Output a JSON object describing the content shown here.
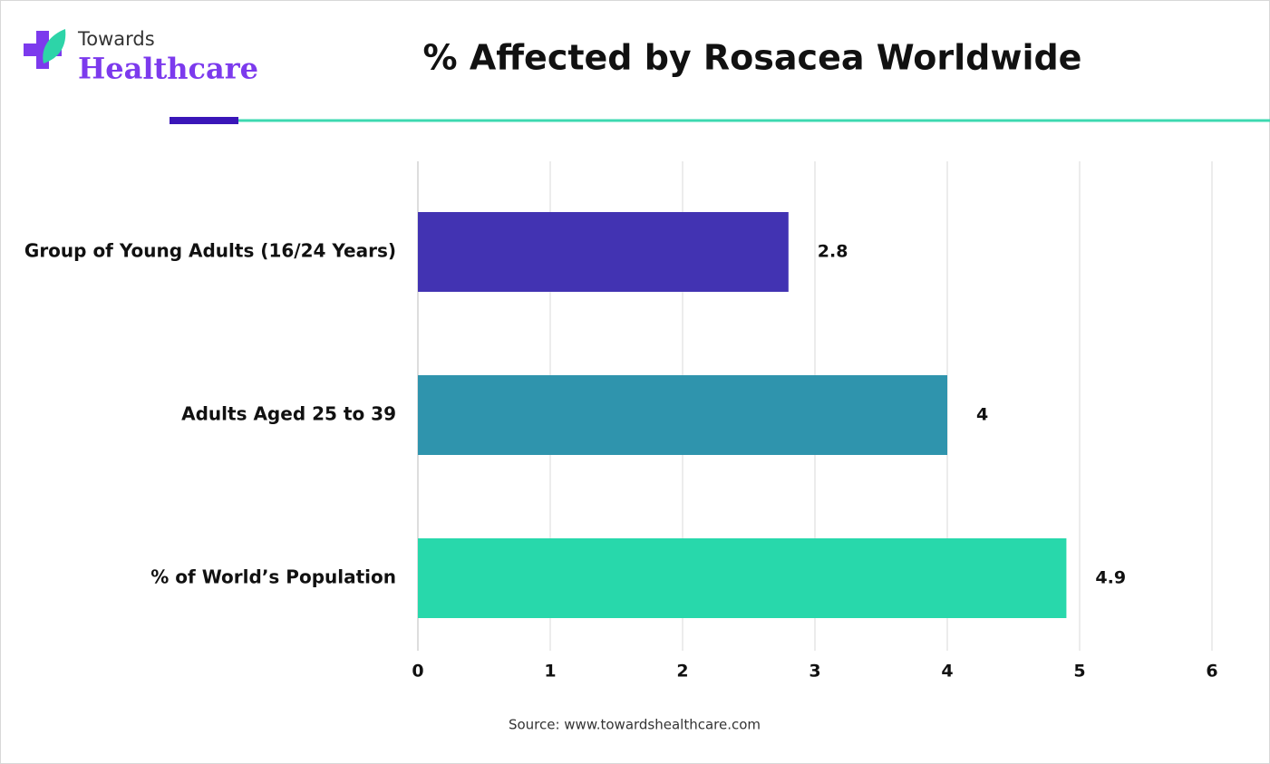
{
  "logo": {
    "top": "Towards",
    "bottom": "Healthcare"
  },
  "chart_data": {
    "type": "bar",
    "orientation": "horizontal",
    "title": "% Affected by Rosacea Worldwide",
    "categories": [
      "Group of Young Adults (16/24 Years)",
      "Adults Aged 25 to 39",
      "% of World’s Population"
    ],
    "values": [
      2.8,
      4,
      4.9
    ],
    "colors": [
      "#4233b2",
      "#2f94ad",
      "#28d8ab"
    ],
    "xlim": [
      0,
      6
    ],
    "xticks": [
      0,
      1,
      2,
      3,
      4,
      5,
      6
    ],
    "grid": true,
    "source": "Source: www.towardshealthcare.com"
  }
}
